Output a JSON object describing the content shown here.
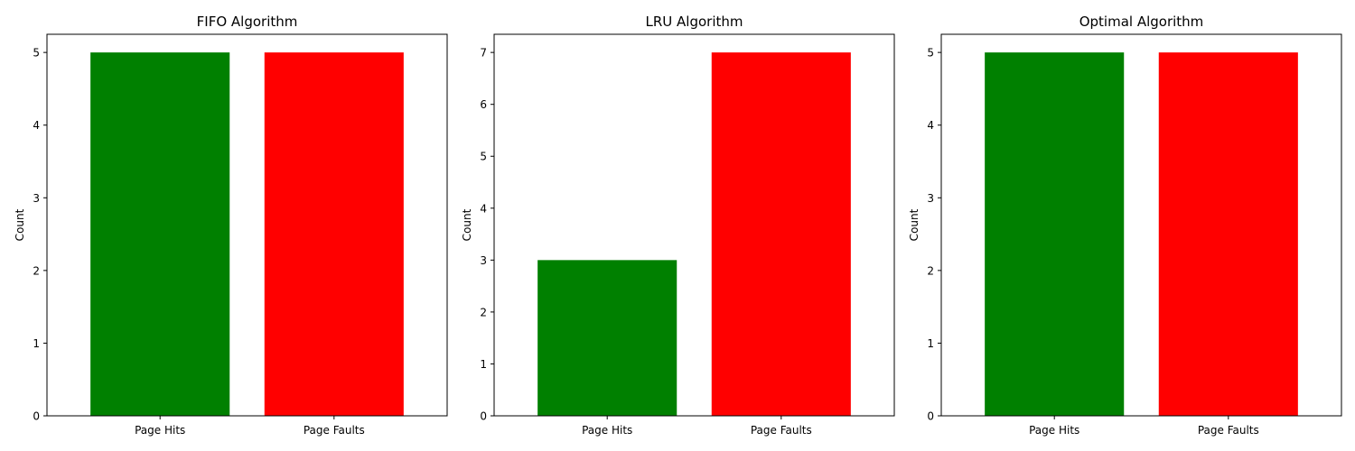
{
  "chart_data": [
    {
      "type": "bar",
      "title": "FIFO Algorithm",
      "xlabel": "",
      "ylabel": "Count",
      "categories": [
        "Page Hits",
        "Page Faults"
      ],
      "values": [
        5,
        5
      ],
      "bar_colors": [
        "#008000",
        "#ff0000"
      ],
      "yticks": [
        0,
        1,
        2,
        3,
        4,
        5
      ],
      "ylim": [
        0,
        5.25
      ],
      "grid": false,
      "legend": "none"
    },
    {
      "type": "bar",
      "title": "LRU Algorithm",
      "xlabel": "",
      "ylabel": "Count",
      "categories": [
        "Page Hits",
        "Page Faults"
      ],
      "values": [
        3,
        7
      ],
      "bar_colors": [
        "#008000",
        "#ff0000"
      ],
      "yticks": [
        0,
        1,
        2,
        3,
        4,
        5,
        6,
        7
      ],
      "ylim": [
        0,
        7.35
      ],
      "grid": false,
      "legend": "none"
    },
    {
      "type": "bar",
      "title": "Optimal Algorithm",
      "xlabel": "",
      "ylabel": "Count",
      "categories": [
        "Page Hits",
        "Page Faults"
      ],
      "values": [
        5,
        5
      ],
      "bar_colors": [
        "#008000",
        "#ff0000"
      ],
      "yticks": [
        0,
        1,
        2,
        3,
        4,
        5
      ],
      "ylim": [
        0,
        5.25
      ],
      "grid": false,
      "legend": "none"
    }
  ]
}
